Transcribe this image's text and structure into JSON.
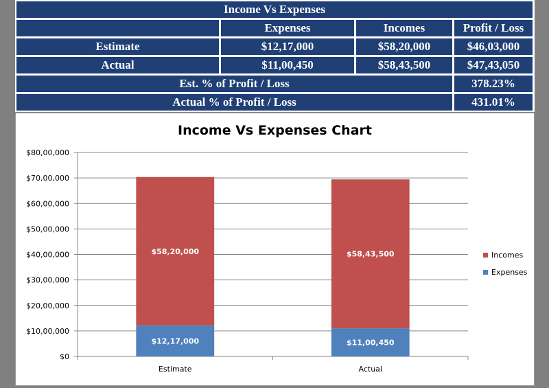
{
  "table": {
    "title": "Income Vs Expenses",
    "headers": [
      "Expenses",
      "Incomes",
      "Profit / Loss"
    ],
    "rows": [
      {
        "label": "Estimate",
        "expenses": "$12,17,000",
        "incomes": "$58,20,000",
        "profit_loss": "$46,03,000"
      },
      {
        "label": "Actual",
        "expenses": "$11,00,450",
        "incomes": "$58,43,500",
        "profit_loss": "$47,43,050"
      }
    ],
    "summary": [
      {
        "label": "Est. % of Profit / Loss",
        "value": "378.23%"
      },
      {
        "label": "Actual % of Profit / Loss",
        "value": "431.01%"
      }
    ]
  },
  "colors": {
    "header_bg": "#1f3f75",
    "incomes": "#c0504d",
    "expenses": "#4f81bd"
  },
  "chart_data": {
    "type": "bar",
    "stacked": true,
    "title": "Income Vs Expenses Chart",
    "categories": [
      "Estimate",
      "Actual"
    ],
    "series": [
      {
        "name": "Expenses",
        "values": [
          1217000,
          1100450
        ],
        "labels": [
          "$12,17,000",
          "$11,00,450"
        ],
        "color": "#4f81bd"
      },
      {
        "name": "Incomes",
        "values": [
          5820000,
          5843500
        ],
        "labels": [
          "$58,20,000",
          "$58,43,500"
        ],
        "color": "#c0504d"
      }
    ],
    "ylim": [
      0,
      8000000
    ],
    "yticks": [
      0,
      1000000,
      2000000,
      3000000,
      4000000,
      5000000,
      6000000,
      7000000,
      8000000
    ],
    "ytick_labels": [
      "$0",
      "$10,00,000",
      "$20,00,000",
      "$30,00,000",
      "$40,00,000",
      "$50,00,000",
      "$60,00,000",
      "$70,00,000",
      "$80,00,000"
    ],
    "legend": {
      "position": "right",
      "entries": [
        "Incomes",
        "Expenses"
      ]
    },
    "grid": true
  }
}
